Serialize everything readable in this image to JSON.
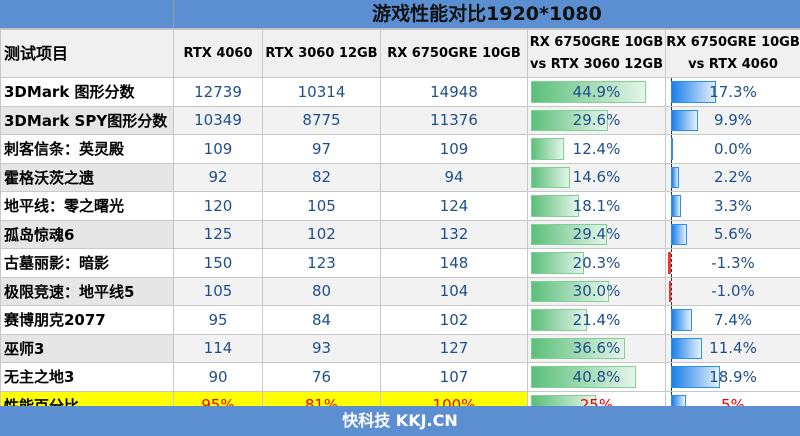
{
  "title": "游戏性能对比1920*1080",
  "headers": [
    "测试项目",
    "RTX 4060",
    "RTX 3060 12GB",
    "RX 6750GRE 10GB",
    "RX 6750GRE 10GB vs RTX 3060 12GB",
    "RX 6750GRE 10GB vs RTX 4060"
  ],
  "rows": [
    [
      "3DMark 图形分数",
      "12739",
      "10314",
      "14948",
      "44.9%",
      "17.3%"
    ],
    [
      "3DMark SPY图形分数",
      "10349",
      "8775",
      "11376",
      "29.6%",
      "9.9%"
    ],
    [
      "刺客信条：英灵殿",
      "109",
      "97",
      "109",
      "12.4%",
      "0.0%"
    ],
    [
      "霍格沃茨之遗",
      "92",
      "82",
      "94",
      "14.6%",
      "2.2%"
    ],
    [
      "地平线：零之曙光",
      "120",
      "105",
      "124",
      "18.1%",
      "3.3%"
    ],
    [
      "孤岛惊魂6",
      "125",
      "102",
      "132",
      "29.4%",
      "5.6%"
    ],
    [
      "古墓丽影：暗影",
      "150",
      "123",
      "148",
      "20.3%",
      "-1.3%"
    ],
    [
      "极限竞速：地平线5",
      "105",
      "80",
      "104",
      "30.0%",
      "-1.0%"
    ],
    [
      "赛博朋克2077",
      "95",
      "84",
      "102",
      "21.4%",
      "7.4%"
    ],
    [
      "巫师3",
      "114",
      "93",
      "127",
      "36.6%",
      "11.4%"
    ],
    [
      "无主之地3",
      "90",
      "76",
      "107",
      "40.8%",
      "18.9%"
    ]
  ],
  "summary": [
    "性能百分比",
    "95%",
    "81%",
    "100%",
    "25%",
    "5%"
  ],
  "footer": "快科技 KKJ.CN",
  "colors": {
    "header_blue": "#5b8fd1",
    "green_bar": "#5cbf7a",
    "blue_bar": "#1a7fe8",
    "negative": "#e33333",
    "summary_bg": "#ffff00"
  }
}
